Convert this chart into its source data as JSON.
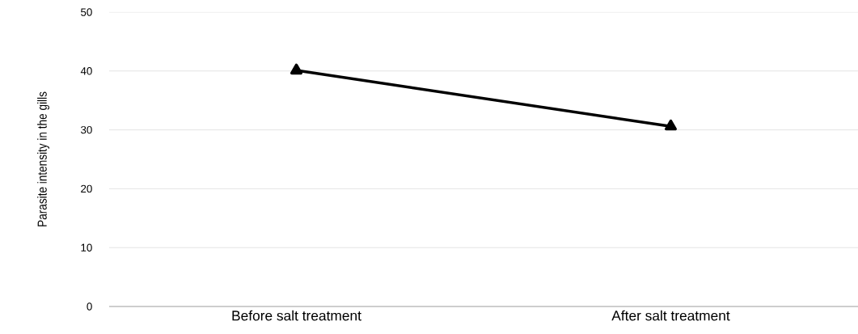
{
  "chart_data": {
    "type": "line",
    "ylabel": "Parasite intensity in the gills",
    "categories": [
      "Before salt treatment",
      "After salt treatment"
    ],
    "series": [
      {
        "color": "#000000",
        "values": [
          40.1,
          30.6
        ]
      }
    ],
    "ylim": [
      0,
      50
    ],
    "yticks": [
      0,
      10,
      20,
      30,
      40,
      50
    ],
    "grid": "y",
    "marker": "triangle",
    "line_style": "solid"
  }
}
